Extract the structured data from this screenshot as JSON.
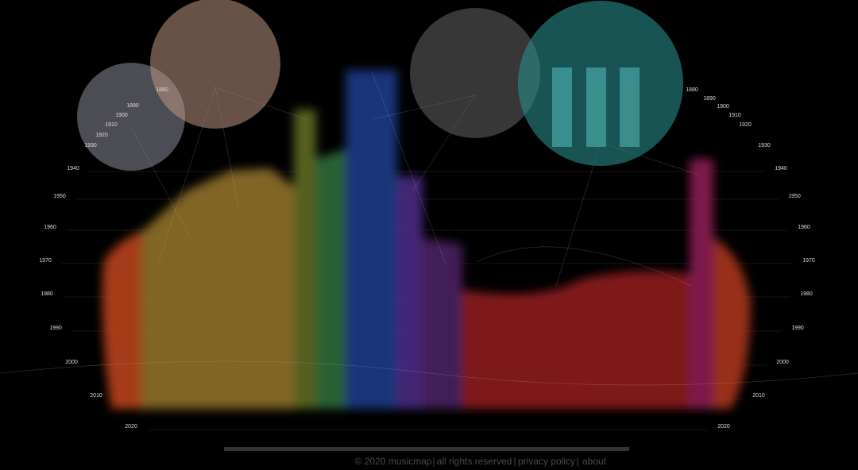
{
  "timeline": [
    "1880",
    "1890",
    "1900",
    "1910",
    "1920",
    "1930",
    "1940",
    "1950",
    "1960",
    "1970",
    "1980",
    "1990",
    "2000",
    "2010",
    "2020"
  ],
  "footer": {
    "copyright": "© 2020 musicmap",
    "rights": "all rights reserved",
    "privacy": "privacy policy",
    "about": "about",
    "separator": "|"
  }
}
